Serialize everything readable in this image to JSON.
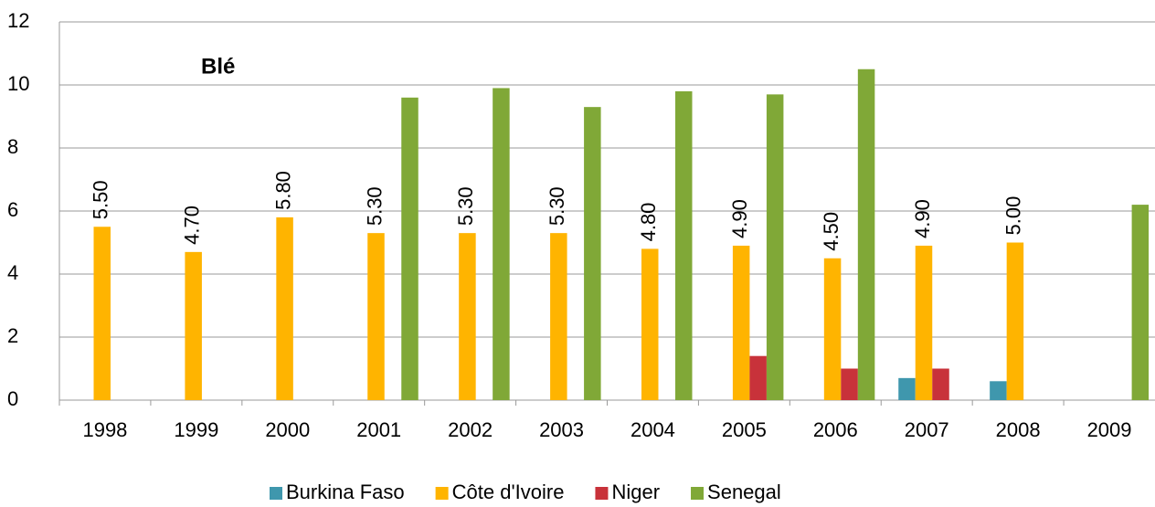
{
  "chart_data": {
    "type": "bar",
    "title": "Blé",
    "categories": [
      "1998",
      "1999",
      "2000",
      "2001",
      "2002",
      "2003",
      "2004",
      "2005",
      "2006",
      "2007",
      "2008",
      "2009"
    ],
    "series": [
      {
        "name": "Burkina Faso",
        "color": "#3f97ad",
        "values": [
          null,
          null,
          null,
          null,
          null,
          null,
          null,
          null,
          null,
          0.7,
          0.6,
          null
        ]
      },
      {
        "name": "Côte d'Ivoire",
        "color": "#ffb400",
        "values": [
          5.5,
          4.7,
          5.8,
          5.3,
          5.3,
          5.3,
          4.8,
          4.9,
          4.5,
          4.9,
          5.0,
          null
        ],
        "value_labels": [
          "5.50",
          "4.70",
          "5.80",
          "5.30",
          "5.30",
          "5.30",
          "4.80",
          "4.90",
          "4.50",
          "4.90",
          "5.00",
          null
        ]
      },
      {
        "name": "Niger",
        "color": "#c8323a",
        "values": [
          null,
          null,
          null,
          null,
          null,
          null,
          null,
          1.4,
          1.0,
          1.0,
          null,
          null
        ]
      },
      {
        "name": "Senegal",
        "color": "#80a837",
        "values": [
          null,
          null,
          null,
          9.6,
          9.9,
          9.3,
          9.8,
          9.7,
          10.5,
          null,
          null,
          6.2
        ]
      }
    ],
    "ylim": [
      0,
      12
    ],
    "yticks": [
      0,
      2,
      4,
      6,
      8,
      10,
      12
    ],
    "grid": true
  }
}
